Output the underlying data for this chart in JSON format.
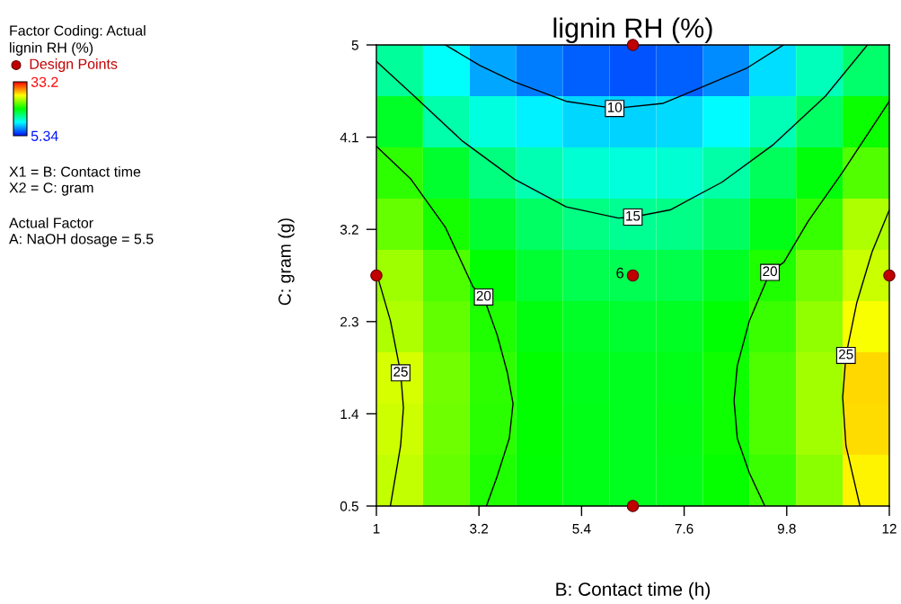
{
  "chart_data": {
    "type": "heatmap",
    "title": "lignin RH (%)",
    "xlabel": "B: Contact time (h)",
    "ylabel": "C: gram (g)",
    "legend_title": "lignin RH (%)",
    "legend": "top left",
    "annotations": [
      "Factor Coding: Actual",
      "X1 = B: Contact time\nX2 = C: gram",
      "Actual Factor\nA: NaOH dosage = 5.5",
      {
        "text": "10",
        "x": 6.11,
        "y": 4.38
      },
      {
        "text": "15",
        "x": 6.5,
        "y": 3.32
      },
      {
        "text": "20",
        "x": 3.3,
        "y": 2.54
      },
      {
        "text": "20",
        "x": 9.44,
        "y": 2.78
      },
      {
        "text": "25",
        "x": 1.52,
        "y": 1.8
      },
      {
        "text": "25",
        "x": 11.07,
        "y": 1.97
      },
      {
        "text": "6",
        "x": 6.5,
        "y": 2.75
      }
    ],
    "cells": [
      [
        15.1,
        12.5,
        9.8,
        8.6,
        7.7,
        7.4,
        7.7,
        9.0,
        11.4,
        14.2,
        16.4
      ],
      [
        18.2,
        14.6,
        13.2,
        11.9,
        11.2,
        11.0,
        11.3,
        12.3,
        14.3,
        16.6,
        19.5
      ],
      [
        20.5,
        18.0,
        15.8,
        14.4,
        13.6,
        13.3,
        13.6,
        14.7,
        16.8,
        19.0,
        21.5
      ],
      [
        22.0,
        19.9,
        18.0,
        16.6,
        15.7,
        15.3,
        15.6,
        16.7,
        18.7,
        20.7,
        24.0
      ],
      [
        23.6,
        21.4,
        19.2,
        17.9,
        17.2,
        17.0,
        17.3,
        18.3,
        20.1,
        22.4,
        24.8
      ],
      [
        24.0,
        21.9,
        20.1,
        18.9,
        18.2,
        18.0,
        18.3,
        19.2,
        20.9,
        23.2,
        26.1
      ],
      [
        25.1,
        22.4,
        20.5,
        19.3,
        18.6,
        18.4,
        18.7,
        19.6,
        21.4,
        23.7,
        27.3
      ],
      [
        24.9,
        22.3,
        20.4,
        19.3,
        18.7,
        18.5,
        18.8,
        19.6,
        21.4,
        23.7,
        27.2
      ],
      [
        24.6,
        22.0,
        20.1,
        19.2,
        18.7,
        18.5,
        18.7,
        19.4,
        20.8,
        23.0,
        26.5
      ]
    ],
    "clim": [
      5.34,
      33.2
    ],
    "cticks": [
      5.34,
      33.2
    ],
    "xlim": [
      1,
      12
    ],
    "xticks": [
      1,
      3.2,
      5.4,
      7.6,
      9.8,
      12
    ],
    "ylim": [
      0.5,
      5
    ],
    "yticks": [
      0.5,
      1.4,
      2.3,
      3.2,
      4.1,
      5
    ],
    "series": [
      {
        "type": "line",
        "color": "#000000",
        "x": [
          2.48,
          3.22,
          3.96,
          5.07,
          6.11,
          7.15,
          8.04,
          8.93,
          9.73
        ],
        "values": [
          5.0,
          4.8,
          4.64,
          4.45,
          4.38,
          4.43,
          4.6,
          4.77,
          5.0
        ]
      },
      {
        "type": "line",
        "color": "#000000",
        "x": [
          1,
          1.74,
          2.85,
          3.96,
          5.07,
          6.19,
          6.5,
          7.3,
          8.41,
          9.52,
          10.63,
          11.53
        ],
        "values": [
          4.84,
          4.53,
          4.06,
          3.69,
          3.42,
          3.31,
          3.32,
          3.39,
          3.66,
          4.03,
          4.5,
          5.0
        ]
      },
      {
        "type": "line",
        "color": "#000000",
        "x": [
          1,
          1.74,
          2.48,
          3.07,
          3.3,
          3.59,
          3.81,
          3.93,
          3.85,
          3.59,
          3.36
        ],
        "values": [
          4.01,
          3.69,
          3.22,
          2.64,
          2.54,
          2.17,
          1.8,
          1.5,
          1.16,
          0.79,
          0.5
        ]
      },
      {
        "type": "line",
        "color": "#000000",
        "x": [
          12,
          11,
          10.26,
          9.74,
          9.44,
          9.0,
          8.74,
          8.67,
          8.74,
          9.0,
          9.33
        ],
        "values": [
          4.45,
          3.76,
          3.28,
          2.88,
          2.78,
          2.31,
          1.87,
          1.53,
          1.16,
          0.82,
          0.5
        ]
      },
      {
        "type": "line",
        "color": "#000000",
        "x": [
          1,
          1.3,
          1.52,
          1.58,
          1.52,
          1.3
        ],
        "values": [
          2.78,
          2.31,
          1.8,
          1.46,
          1.09,
          0.5
        ]
      },
      {
        "type": "line",
        "color": "#000000",
        "x": [
          12,
          11.63,
          11.3,
          11.07,
          11.0,
          11.07,
          11.37
        ],
        "values": [
          3.39,
          2.98,
          2.48,
          1.97,
          1.56,
          1.09,
          0.5
        ]
      },
      {
        "type": "scatter",
        "name": "Design Points",
        "color": "#c00000",
        "marker": "circle",
        "x": [
          6.5,
          1,
          6.5,
          12,
          6.5
        ],
        "values": [
          5,
          2.75,
          2.75,
          2.75,
          0.5
        ]
      }
    ]
  }
}
